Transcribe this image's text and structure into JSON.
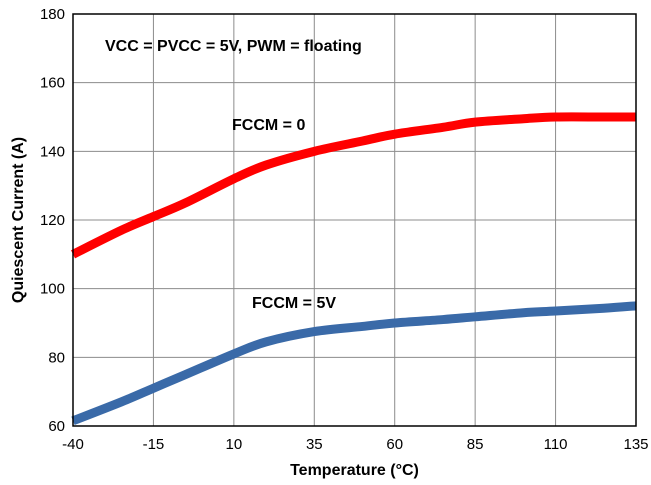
{
  "chart_data": {
    "type": "line",
    "xlabel": "Temperature (°C)",
    "ylabel": "Quiescent Current (A)",
    "xlim": [
      -40,
      135
    ],
    "ylim": [
      60,
      180
    ],
    "xticks": [
      -40,
      -15,
      10,
      35,
      60,
      85,
      110,
      135
    ],
    "yticks": [
      60,
      80,
      100,
      120,
      140,
      160,
      180
    ],
    "grid": true,
    "annotations": [
      "VCC = PVCC = 5V, PWM = floating",
      "FCCM = 0",
      "FCCM = 5V"
    ],
    "series": [
      {
        "color": "#ff0000",
        "x": [
          -40,
          -25,
          -15,
          -5,
          10,
          20,
          35,
          50,
          60,
          75,
          85,
          100,
          110,
          125,
          135
        ],
        "y": [
          110,
          117,
          121,
          125,
          132,
          136,
          140,
          143,
          145,
          147,
          148.5,
          149.5,
          150,
          150,
          150
        ]
      },
      {
        "color": "#3a6aa8",
        "x": [
          -40,
          -25,
          -15,
          -5,
          10,
          20,
          35,
          50,
          60,
          75,
          85,
          100,
          110,
          125,
          135
        ],
        "y": [
          61.5,
          67,
          71,
          75,
          81,
          84.5,
          87.5,
          89,
          90,
          91,
          91.8,
          93,
          93.5,
          94.3,
          95
        ]
      }
    ]
  }
}
